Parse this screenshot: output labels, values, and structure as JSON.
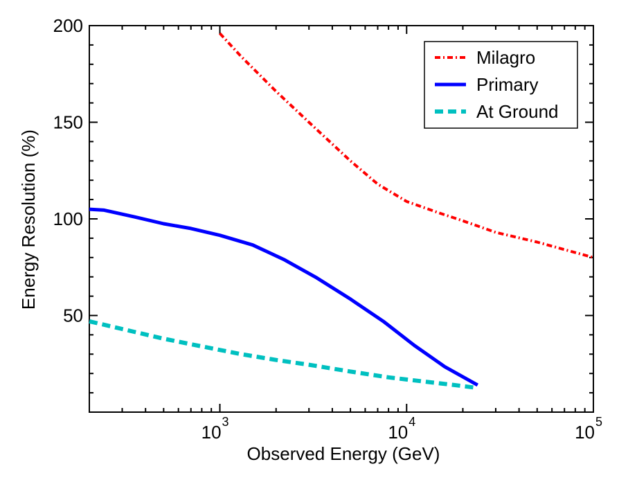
{
  "chart_data": {
    "type": "line",
    "title": "",
    "xlabel": "Observed Energy (GeV)",
    "ylabel": "Energy Resolution (%)",
    "x_scale": "log",
    "y_scale": "linear",
    "xlim": [
      200,
      100000
    ],
    "ylim": [
      0,
      200
    ],
    "x_ticks": [
      {
        "value": 1000,
        "base": "10",
        "exp": "3"
      },
      {
        "value": 10000,
        "base": "10",
        "exp": "4"
      },
      {
        "value": 100000,
        "base": "10",
        "exp": "5"
      }
    ],
    "y_ticks": [
      {
        "value": 50,
        "label": "50"
      },
      {
        "value": 100,
        "label": "100"
      },
      {
        "value": 150,
        "label": "150"
      },
      {
        "value": 200,
        "label": "200"
      }
    ],
    "grid": false,
    "legend_position": "top-right",
    "series": [
      {
        "name": "Milagro",
        "color": "#ff0000",
        "style": "dash-dot",
        "x": [
          1000,
          1300,
          2000,
          3000,
          5000,
          7000,
          10000,
          15000,
          20000,
          30000,
          50000,
          100000
        ],
        "y": [
          196,
          184,
          166,
          150,
          130,
          118,
          109,
          103,
          99,
          93,
          88,
          80
        ]
      },
      {
        "name": "Primary",
        "color": "#0000ff",
        "style": "solid",
        "x": [
          200,
          240,
          350,
          500,
          700,
          1000,
          1500,
          2200,
          3300,
          5000,
          7500,
          11000,
          16000,
          24000
        ],
        "y": [
          105,
          104.5,
          101,
          97.5,
          95,
          91.5,
          86.5,
          79,
          69.5,
          58.5,
          47,
          34.5,
          23.5,
          14
        ]
      },
      {
        "name": "At Ground",
        "color": "#00c0c0",
        "style": "dashed",
        "x": [
          200,
          300,
          500,
          800,
          1300,
          2000,
          3000,
          5000,
          8000,
          12000,
          18000,
          24000
        ],
        "y": [
          47,
          43,
          38,
          34,
          30,
          27,
          24.5,
          21,
          18,
          16,
          14,
          12.5
        ]
      }
    ]
  }
}
